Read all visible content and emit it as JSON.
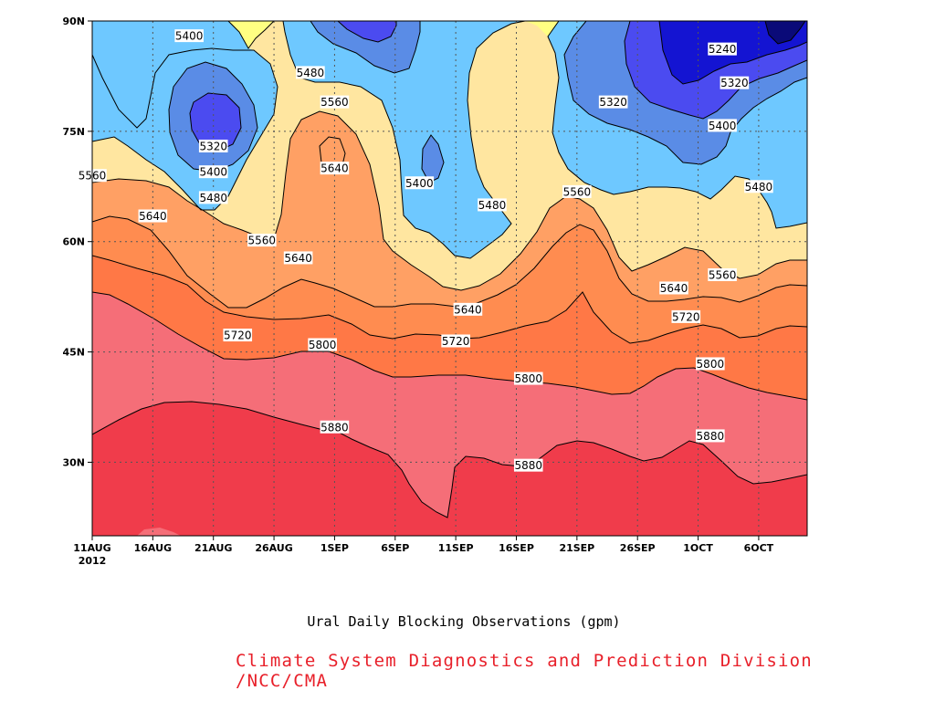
{
  "chart_data": {
    "type": "heatmap",
    "title": "Ural Daily Blocking Observations (gpm)",
    "credit": "Climate System Diagnostics and Prediction Division /NCC/CMA",
    "x_ticks": [
      "11AUG",
      "16AUG",
      "21AUG",
      "26AUG",
      "1SEP",
      "6SEP",
      "11SEP",
      "16SEP",
      "21SEP",
      "26SEP",
      "1OCT",
      "6OCT"
    ],
    "x_year": "2012",
    "y_ticks": [
      "30N",
      "45N",
      "60N",
      "75N",
      "90N"
    ],
    "y_values": [
      30,
      45,
      60,
      75,
      90
    ],
    "ylim": [
      20,
      90
    ],
    "x_date_range": [
      "2012-08-11",
      "2012-10-09"
    ],
    "grid": true,
    "contour_levels": [
      5240,
      5320,
      5400,
      5480,
      5560,
      5640,
      5720,
      5800,
      5880
    ],
    "level_colors": [
      "#0000b4",
      "#1414d2",
      "#4b4bf0",
      "#5a8ce6",
      "#6ec8ff",
      "#ffff82",
      "#ffe6a0",
      "#ffa064",
      "#ff7846",
      "#f56e78",
      "#f03c4b"
    ],
    "contour_labels": [
      {
        "text": "5400",
        "x": "2012-08-19",
        "y": 88
      },
      {
        "text": "5480",
        "x": "2012-08-29",
        "y": 83
      },
      {
        "text": "5560",
        "x": "2012-08-31",
        "y": 79
      },
      {
        "text": "5320",
        "x": "2012-08-21",
        "y": 73
      },
      {
        "text": "5400",
        "x": "2012-08-21",
        "y": 69.5
      },
      {
        "text": "5480",
        "x": "2012-08-21",
        "y": 66
      },
      {
        "text": "5640",
        "x": "2012-08-31",
        "y": 70
      },
      {
        "text": "5400",
        "x": "2012-09-07",
        "y": 68
      },
      {
        "text": "5560",
        "x": "2012-08-11",
        "y": 69
      },
      {
        "text": "5640",
        "x": "2012-08-16",
        "y": 63.5
      },
      {
        "text": "5560",
        "x": "2012-08-25",
        "y": 60.2
      },
      {
        "text": "5640",
        "x": "2012-08-28",
        "y": 57.8
      },
      {
        "text": "5480",
        "x": "2012-09-13",
        "y": 65
      },
      {
        "text": "5560",
        "x": "2012-09-20",
        "y": 66.8
      },
      {
        "text": "5320",
        "x": "2012-09-23",
        "y": 79
      },
      {
        "text": "5240",
        "x": "2012-10-02",
        "y": 86.2
      },
      {
        "text": "5320",
        "x": "2012-10-03",
        "y": 81.6
      },
      {
        "text": "5400",
        "x": "2012-10-02",
        "y": 75.8
      },
      {
        "text": "5480",
        "x": "2012-10-05",
        "y": 67.5
      },
      {
        "text": "5560",
        "x": "2012-10-02",
        "y": 55.5
      },
      {
        "text": "5640",
        "x": "2012-09-28",
        "y": 53.7
      },
      {
        "text": "5720",
        "x": "2012-09-29",
        "y": 49.8
      },
      {
        "text": "5640",
        "x": "2012-09-11",
        "y": 50.8
      },
      {
        "text": "5720",
        "x": "2012-08-23",
        "y": 47.3
      },
      {
        "text": "5800",
        "x": "2012-08-30",
        "y": 46
      },
      {
        "text": "5720",
        "x": "2012-09-10",
        "y": 46.5
      },
      {
        "text": "5800",
        "x": "2012-09-16",
        "y": 41.4
      },
      {
        "text": "5800",
        "x": "2012-10-01",
        "y": 43.4
      },
      {
        "text": "5880",
        "x": "2012-08-31",
        "y": 34.8
      },
      {
        "text": "5880",
        "x": "2012-09-16",
        "y": 29.6
      },
      {
        "text": "5880",
        "x": "2012-10-01",
        "y": 33.6
      }
    ]
  }
}
